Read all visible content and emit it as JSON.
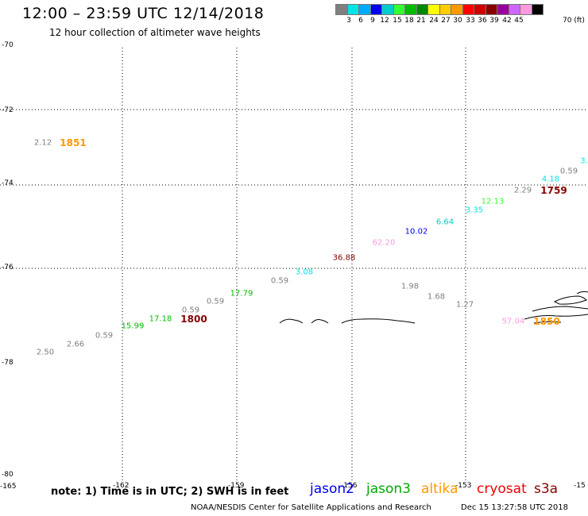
{
  "header": {
    "title": "12:00 – 23:59 UTC 12/14/2018",
    "subtitle": "12 hour collection of altimeter wave heights"
  },
  "color_scale": {
    "colors": [
      "#7f7f7f",
      "#00e5e5",
      "#00aaff",
      "#0000ee",
      "#00cccc",
      "#33ff33",
      "#00bb00",
      "#008800",
      "#ffff00",
      "#ffcc00",
      "#ff9900",
      "#ff0000",
      "#cc0000",
      "#880000",
      "#990099",
      "#cc66ff",
      "#ff99dd",
      "#000000"
    ],
    "labels": [
      "3",
      "6",
      "9",
      "12",
      "15",
      "18",
      "21",
      "24",
      "27",
      "30",
      "33",
      "36",
      "39",
      "42",
      "45",
      "70 (ft)"
    ]
  },
  "axes": {
    "lat_labels": [
      "-70",
      "-72",
      "-74",
      "-76",
      "-78",
      "-78",
      "-80"
    ],
    "lon_labels": [
      "-165",
      "-162",
      "-159",
      "-156",
      "-153",
      "-15"
    ]
  },
  "observations": [
    {
      "text": "2.12",
      "color": "#7f7f7f"
    },
    {
      "text": "1851",
      "color": "#ff9900",
      "type": "time"
    },
    {
      "text": "0.59",
      "color": "#7f7f7f"
    },
    {
      "text": "4.18",
      "color": "#00e5e5"
    },
    {
      "text": "3.",
      "color": "#00e5e5"
    },
    {
      "text": "2.29",
      "color": "#7f7f7f"
    },
    {
      "text": "1759",
      "color": "#880000",
      "type": "time"
    },
    {
      "text": "12.13",
      "color": "#33ff33"
    },
    {
      "text": "3.35",
      "color": "#00e5e5"
    },
    {
      "text": "6.64",
      "color": "#00cccc"
    },
    {
      "text": "10.02",
      "color": "#0000ee"
    },
    {
      "text": "62.20",
      "color": "#ff99dd"
    },
    {
      "text": "36.88",
      "color": "#880000"
    },
    {
      "text": "3.08",
      "color": "#00e5e5"
    },
    {
      "text": "0.59",
      "color": "#7f7f7f"
    },
    {
      "text": "1.98",
      "color": "#7f7f7f"
    },
    {
      "text": "17.79",
      "color": "#00bb00"
    },
    {
      "text": "1.68",
      "color": "#7f7f7f"
    },
    {
      "text": "0.59",
      "color": "#7f7f7f"
    },
    {
      "text": "1.27",
      "color": "#7f7f7f"
    },
    {
      "text": "0.59",
      "color": "#7f7f7f"
    },
    {
      "text": "17.18",
      "color": "#00bb00"
    },
    {
      "text": "1800",
      "color": "#880000",
      "type": "time"
    },
    {
      "text": "15.99",
      "color": "#00bb00"
    },
    {
      "text": "57.04",
      "color": "#ff99dd"
    },
    {
      "text": "1850",
      "color": "#ff9900",
      "type": "time"
    },
    {
      "text": "0.59",
      "color": "#7f7f7f"
    },
    {
      "text": "2.66",
      "color": "#7f7f7f"
    },
    {
      "text": "2.50",
      "color": "#7f7f7f"
    }
  ],
  "footer": {
    "note": "note:  1) Time is in UTC;  2) SWH is in feet",
    "legend": [
      {
        "name": "jason2",
        "color": "#0000ee"
      },
      {
        "name": "jason3",
        "color": "#00aa00"
      },
      {
        "name": "altika",
        "color": "#ff9900"
      },
      {
        "name": "cryosat",
        "color": "#ee0000"
      },
      {
        "name": "s3a",
        "color": "#880000"
      }
    ],
    "credit": "NOAA/NESDIS Center for Satellite Applications and Research",
    "timestamp": "Dec 15 13:27:58 UTC 2018"
  }
}
